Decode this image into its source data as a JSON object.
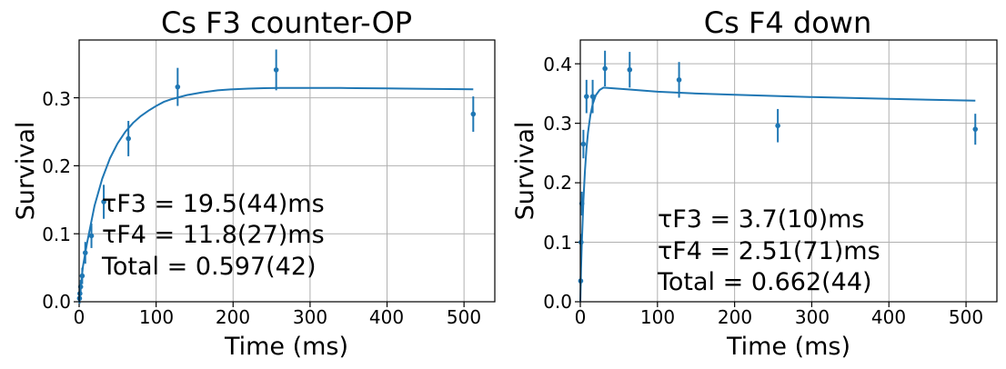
{
  "chart_data": [
    {
      "type": "scatter",
      "title": "Cs F3 counter-OP",
      "xlabel": "Time (ms)",
      "ylabel": "Survival",
      "xlim": [
        0,
        540
      ],
      "ylim": [
        0,
        0.385
      ],
      "xticks": [
        "0",
        "100",
        "200",
        "300",
        "400",
        "500"
      ],
      "yticks": [
        "0.0",
        "0.1",
        "0.2",
        "0.3"
      ],
      "grid": true,
      "color": "#1f77b4",
      "series": [
        {
          "x": [
            0.5,
            1,
            2,
            4,
            8,
            16,
            32,
            64,
            128,
            256,
            512
          ],
          "y": [
            0.005,
            0.012,
            0.022,
            0.038,
            0.072,
            0.097,
            0.147,
            0.24,
            0.316,
            0.341,
            0.276
          ],
          "err": [
            0.008,
            0.008,
            0.01,
            0.012,
            0.016,
            0.018,
            0.025,
            0.026,
            0.028,
            0.03,
            0.026
          ]
        }
      ],
      "fit": {
        "x": [
          0,
          5,
          10,
          20,
          30,
          40,
          50,
          60,
          70,
          80,
          90,
          100,
          110,
          120,
          140,
          160,
          180,
          200,
          220,
          240,
          260,
          280,
          300,
          320,
          340,
          360,
          400,
          450,
          512
        ],
        "y": [
          0,
          0.052,
          0.085,
          0.141,
          0.181,
          0.211,
          0.233,
          0.25,
          0.263,
          0.273,
          0.281,
          0.288,
          0.294,
          0.298,
          0.304,
          0.308,
          0.311,
          0.3125,
          0.3135,
          0.3142,
          0.3145,
          0.3146,
          0.3146,
          0.3145,
          0.3144,
          0.3142,
          0.3138,
          0.3132,
          0.3125
        ]
      },
      "annotations": [
        "τF3 = 19.5(44)ms",
        "τF4 = 11.8(27)ms",
        "Total = 0.597(42)"
      ]
    },
    {
      "type": "scatter",
      "title": "Cs F4 down",
      "xlabel": "Time (ms)",
      "ylabel": "Survival",
      "xlim": [
        0,
        540
      ],
      "ylim": [
        0,
        0.44
      ],
      "xticks": [
        "0",
        "100",
        "200",
        "300",
        "400",
        "500"
      ],
      "yticks": [
        "0.0",
        "0.1",
        "0.2",
        "0.3",
        "0.4"
      ],
      "grid": true,
      "color": "#1f77b4",
      "series": [
        {
          "x": [
            0.5,
            1,
            2,
            4,
            8,
            16,
            32,
            64,
            128,
            256,
            512
          ],
          "y": [
            0.035,
            0.1,
            0.165,
            0.265,
            0.345,
            0.345,
            0.392,
            0.39,
            0.373,
            0.296,
            0.29
          ],
          "err": [
            0.008,
            0.014,
            0.02,
            0.024,
            0.028,
            0.028,
            0.03,
            0.03,
            0.03,
            0.028,
            0.026
          ]
        }
      ],
      "fit": {
        "x": [
          0,
          1,
          2,
          4,
          6,
          8,
          10,
          13,
          16,
          20,
          25,
          30,
          40,
          60,
          100,
          150,
          200,
          300,
          400,
          512
        ],
        "y": [
          0,
          0.055,
          0.1,
          0.17,
          0.22,
          0.258,
          0.285,
          0.313,
          0.332,
          0.347,
          0.356,
          0.36,
          0.359,
          0.357,
          0.353,
          0.35,
          0.348,
          0.344,
          0.341,
          0.338
        ]
      },
      "annotations": [
        "τF3 = 3.7(10)ms",
        "τF4 = 2.51(71)ms",
        "Total = 0.662(44)"
      ]
    }
  ]
}
